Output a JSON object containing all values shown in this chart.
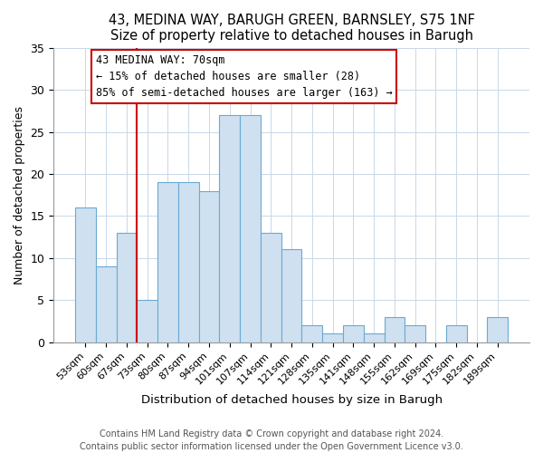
{
  "title1": "43, MEDINA WAY, BARUGH GREEN, BARNSLEY, S75 1NF",
  "title2": "Size of property relative to detached houses in Barugh",
  "xlabel": "Distribution of detached houses by size in Barugh",
  "ylabel": "Number of detached properties",
  "categories": [
    "53sqm",
    "60sqm",
    "67sqm",
    "73sqm",
    "80sqm",
    "87sqm",
    "94sqm",
    "101sqm",
    "107sqm",
    "114sqm",
    "121sqm",
    "128sqm",
    "135sqm",
    "141sqm",
    "148sqm",
    "155sqm",
    "162sqm",
    "169sqm",
    "175sqm",
    "182sqm",
    "189sqm"
  ],
  "values": [
    16,
    9,
    13,
    5,
    19,
    19,
    18,
    27,
    27,
    13,
    11,
    2,
    1,
    2,
    1,
    3,
    2,
    0,
    2,
    0,
    3
  ],
  "bar_color": "#cfe0f0",
  "bar_edge_color": "#6aaad4",
  "vline_color": "#cc0000",
  "annotation_title": "43 MEDINA WAY: 70sqm",
  "annotation_line1": "← 15% of detached houses are smaller (28)",
  "annotation_line2": "85% of semi-detached houses are larger (163) →",
  "annotation_box_edge": "#cc0000",
  "annotation_box_face": "white",
  "ylim": [
    0,
    35
  ],
  "yticks": [
    0,
    5,
    10,
    15,
    20,
    25,
    30,
    35
  ],
  "footer1": "Contains HM Land Registry data © Crown copyright and database right 2024.",
  "footer2": "Contains public sector information licensed under the Open Government Licence v3.0.",
  "title_fontsize": 10.5,
  "footer_fontsize": 7.0
}
